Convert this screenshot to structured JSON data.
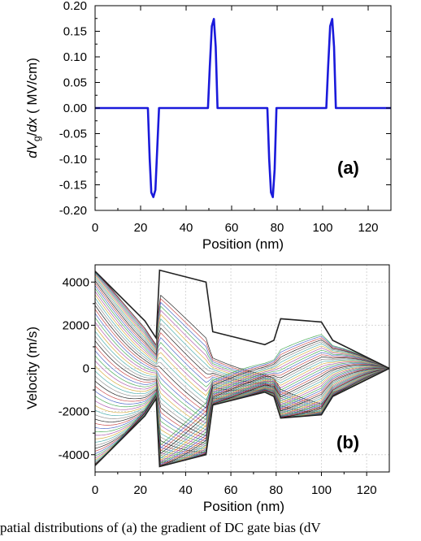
{
  "chart_data": [
    {
      "type": "line",
      "panel_label": "(a)",
      "ylabel": {
        "pre": "d",
        "v": "V",
        "sub": "g",
        "mid": "/",
        "d2": "dx",
        "post": " ( MV/cm)"
      },
      "xlabel": "Position (nm)",
      "xlim": [
        0,
        130
      ],
      "ylim": [
        -0.2,
        0.2
      ],
      "xticks": [
        "0",
        "20",
        "40",
        "60",
        "80",
        "100",
        "120"
      ],
      "yticks": [
        "0.20",
        "0.15",
        "0.10",
        "0.05",
        "0.00",
        "-0.05",
        "-0.10",
        "-0.15",
        "-0.20"
      ],
      "grid": false,
      "line_color": "#1a1adb",
      "series": [
        {
          "x": [
            0,
            23.2,
            24.0,
            24.7,
            25.6,
            26.5,
            27.3,
            28.1,
            49.6,
            50.4,
            51.3,
            52.2,
            53.0,
            53.8,
            75.7,
            76.5,
            77.3,
            78.1,
            78.9,
            79.7,
            101.6,
            102.4,
            103.3,
            104.2,
            105.0,
            105.8,
            130
          ],
          "y": [
            0,
            0,
            -0.1,
            -0.165,
            -0.174,
            -0.16,
            -0.08,
            0,
            0,
            0.08,
            0.16,
            0.174,
            0.12,
            0,
            0,
            -0.1,
            -0.165,
            -0.174,
            -0.12,
            0,
            0,
            0.08,
            0.16,
            0.174,
            0.12,
            0,
            0
          ]
        }
      ]
    },
    {
      "type": "line",
      "panel_label": "(b)",
      "xlabel": "Position (nm)",
      "ylabel": "Velocity (m/s)",
      "xlim": [
        0,
        130
      ],
      "ylim": [
        -4800,
        4800
      ],
      "xticks": [
        "0",
        "20",
        "40",
        "60",
        "80",
        "100",
        "120"
      ],
      "yticks": [
        "4000",
        "2000",
        "0",
        "-2000",
        "-4000"
      ],
      "grid": true,
      "envelope": {
        "x": [
          0,
          22,
          27,
          28.5,
          49,
          52,
          75,
          79,
          82,
          100,
          105,
          130
        ],
        "upper": [
          4500,
          2200,
          1400,
          4550,
          4000,
          1700,
          1100,
          1300,
          2300,
          2150,
          1300,
          0
        ],
        "lower": [
          -4500,
          -2200,
          -1400,
          -4550,
          -4000,
          -1700,
          -1100,
          -1300,
          -2300,
          -2150,
          -1300,
          0
        ]
      },
      "curve_count": 60,
      "curve_colors": [
        "#000000",
        "#c03030",
        "#3050c0",
        "#30a040",
        "#a040a0",
        "#d0a020",
        "#30a0a0",
        "#808080"
      ]
    }
  ],
  "caption": "patial distributions of (a) the gradient of DC gate bias (dV"
}
